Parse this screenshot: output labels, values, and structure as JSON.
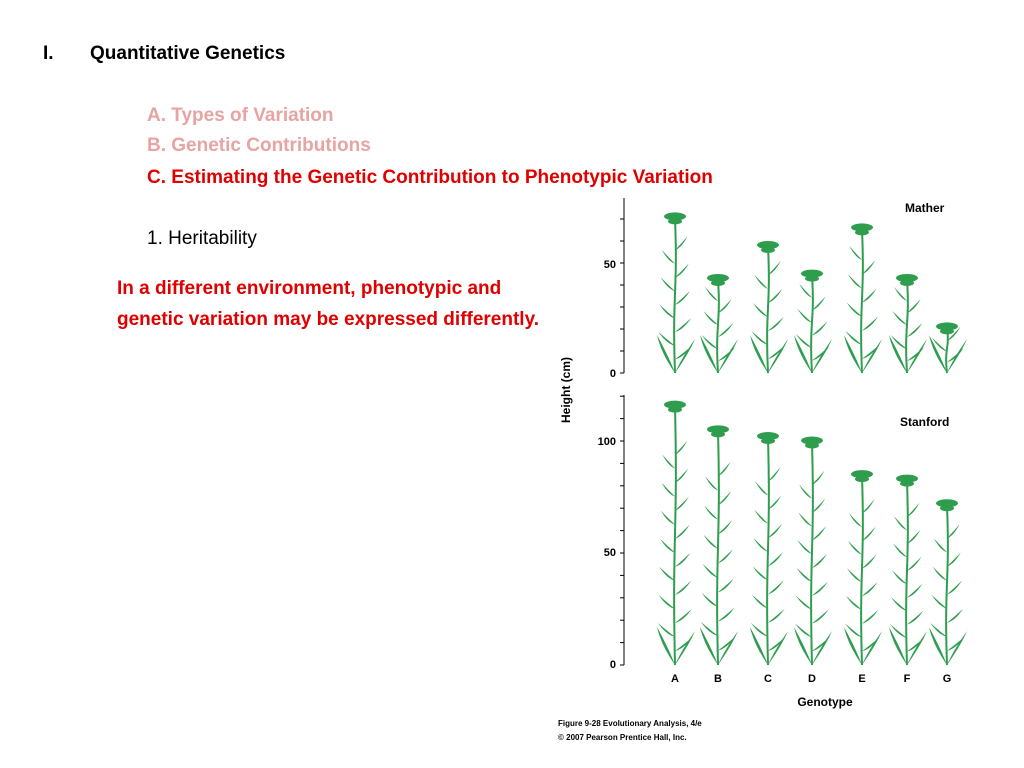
{
  "slide": {
    "section_number": "I.",
    "section_title": "Quantitative Genetics",
    "subsections": [
      {
        "label": "A.  Types of Variation",
        "state": "faded"
      },
      {
        "label": "B. Genetic Contributions",
        "state": "faded"
      },
      {
        "label": "C. Estimating the Genetic Contribution to Phenotypic Variation",
        "state": "active"
      }
    ],
    "subtopic": "1. Heritability",
    "note": "In a different environment, phenotypic and genetic variation may be expressed differently.",
    "colors": {
      "faded": "#e8a3a3",
      "active": "#e00000",
      "plant": "#2e9e4e"
    }
  },
  "figure": {
    "y_axis_label": "Height (cm)",
    "x_axis_label": "Genotype",
    "caption_line1": "Figure 9-28  Evolutionary Analysis, 4/e",
    "caption_line2": "© 2007 Pearson Prentice Hall, Inc.",
    "panels": [
      {
        "name": "Mather",
        "ticks": [
          "50",
          "0"
        ],
        "tick_values": [
          50,
          0
        ],
        "ylim": [
          0,
          80
        ]
      },
      {
        "name": "Stanford",
        "ticks": [
          "100",
          "50",
          "0"
        ],
        "tick_values": [
          100,
          50,
          0
        ],
        "ylim": [
          0,
          120
        ]
      }
    ]
  },
  "chart_data": {
    "type": "bar",
    "title": "",
    "xlabel": "Genotype",
    "ylabel": "Height (cm)",
    "categories": [
      "A",
      "B",
      "C",
      "D",
      "E",
      "F",
      "G"
    ],
    "series": [
      {
        "name": "Mather",
        "values": [
          73,
          45,
          60,
          47,
          68,
          45,
          23
        ]
      },
      {
        "name": "Stanford",
        "values": [
          118,
          107,
          104,
          102,
          87,
          85,
          74
        ]
      }
    ]
  }
}
